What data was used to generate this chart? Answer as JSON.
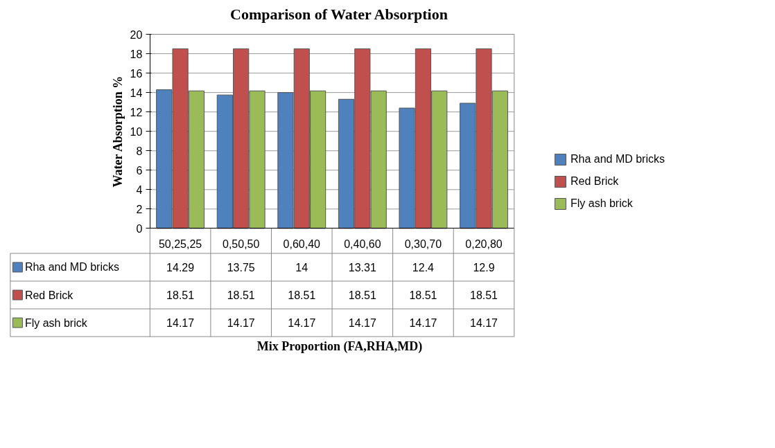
{
  "chart_data": {
    "type": "bar",
    "title": "Comparison of Water Absorption",
    "annotations": [
      "Mix Proportion (FA,RHA,MD)"
    ],
    "ylabel": "Water Absorption %",
    "categories": [
      "50,25,25",
      "0,50,50",
      "0,60,40",
      "0,40,60",
      "0,30,70",
      "0,20,80"
    ],
    "series": [
      {
        "name": "Rha and MD bricks",
        "color": "#4f81bd",
        "values": [
          14.29,
          13.75,
          14,
          13.31,
          12.4,
          12.9
        ]
      },
      {
        "name": "Red Brick",
        "color": "#c0504d",
        "values": [
          18.51,
          18.51,
          18.51,
          18.51,
          18.51,
          18.51
        ]
      },
      {
        "name": "Fly ash brick",
        "color": "#9bbb59",
        "values": [
          14.17,
          14.17,
          14.17,
          14.17,
          14.17,
          14.17
        ]
      }
    ],
    "ylim": [
      0,
      20
    ],
    "yticks": [
      0,
      2,
      4,
      6,
      8,
      10,
      12,
      14,
      16,
      18,
      20
    ],
    "grid": "y",
    "legend": "right",
    "data_labels": true
  }
}
